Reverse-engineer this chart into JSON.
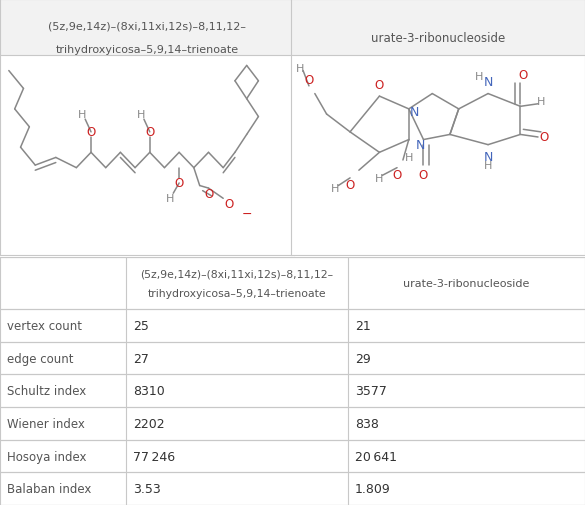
{
  "col1_header": "(5z,9e,14z)–(8xi,11xi,12s)–8,11,12–\ntrihydroxyicosa–5,9,14–trienoate",
  "col2_header": "urate-3-ribonucleoside",
  "row_labels": [
    "vertex count",
    "edge count",
    "Schultz index",
    "Wiener index",
    "Hosoya index",
    "Balaban index"
  ],
  "col1_values": [
    "25",
    "27",
    "8310",
    "2202",
    "77 246",
    "3.53"
  ],
  "col2_values": [
    "21",
    "29",
    "3577",
    "838",
    "20 641",
    "1.809"
  ],
  "bg_color": "#ffffff",
  "border_color": "#c8c8c8",
  "text_color": "#555555",
  "value_color": "#333333",
  "mol_gray": "#888888",
  "mol_red": "#cc2222",
  "mol_blue": "#4466bb"
}
